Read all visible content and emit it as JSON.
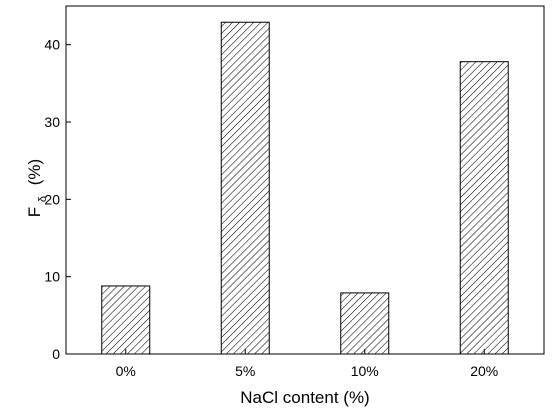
{
  "chart_data": {
    "type": "bar",
    "categories": [
      "0%",
      "5%",
      "10%",
      "20%"
    ],
    "values": [
      8.8,
      42.9,
      7.9,
      37.8
    ],
    "xlabel": "NaCl content (%)",
    "ylabel": {
      "main": "F",
      "subscript": "δ",
      "unit": "(%)"
    },
    "ylim": [
      0,
      45
    ],
    "yticks": [
      0,
      10,
      20,
      30,
      40
    ],
    "grid": false,
    "bar_fill": "diagonal-hatch",
    "colors": {
      "bar_stroke": "#000000",
      "hatch": "#000000",
      "background": "#ffffff"
    }
  }
}
